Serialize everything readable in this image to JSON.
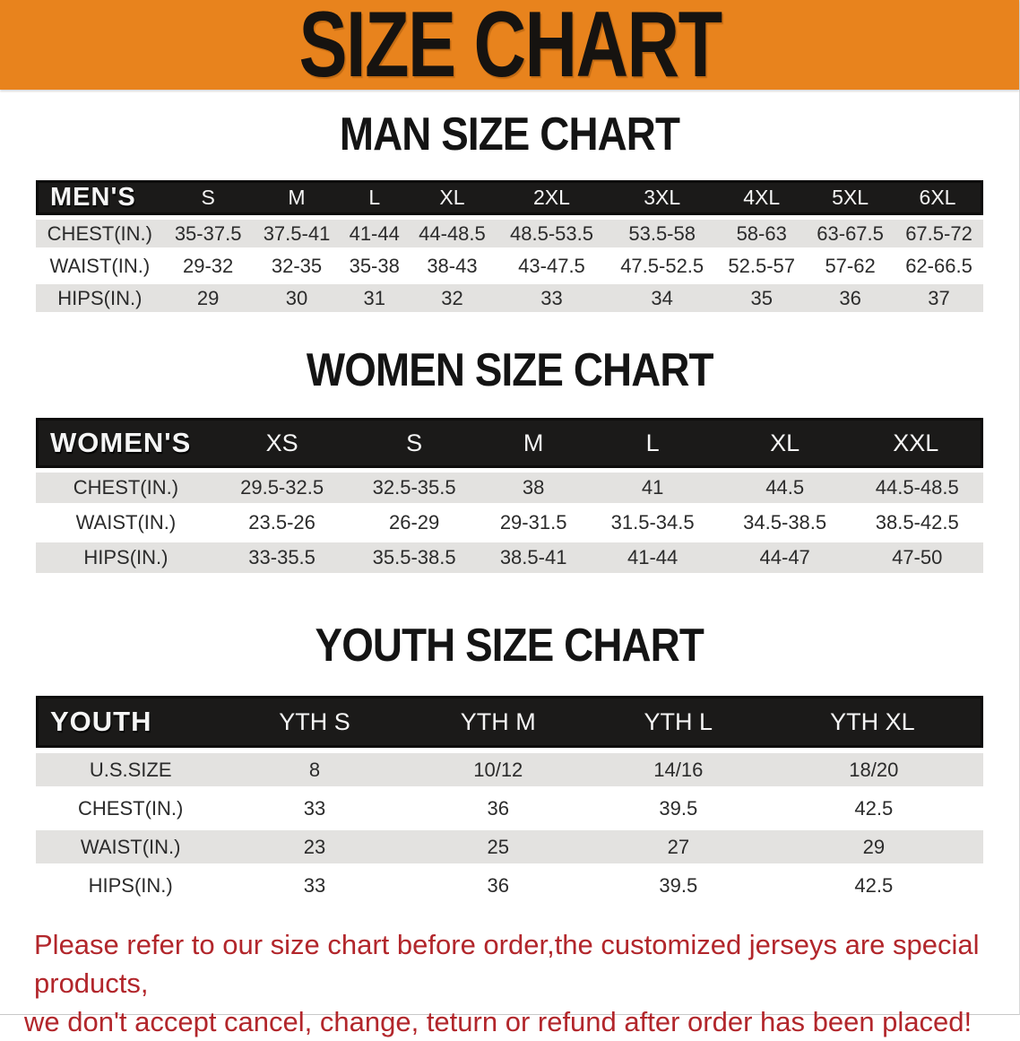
{
  "theme": {
    "banner_bg": "#E8831D",
    "header_bar_bg": "#1B1A19",
    "row_stripe_bg": "#E3E2E0",
    "disclaimer_color": "#B2262B",
    "text_color": "#2B2B2B"
  },
  "banner": {
    "title": "SIZE CHART"
  },
  "sections": [
    {
      "heading": "MAN SIZE CHART",
      "table": {
        "header_label": "MEN'S",
        "columns": [
          "S",
          "M",
          "L",
          "XL",
          "2XL",
          "3XL",
          "4XL",
          "5XL",
          "6XL"
        ],
        "rows": [
          {
            "label": "CHEST(IN.)",
            "values": [
              "35-37.5",
              "37.5-41",
              "41-44",
              "44-48.5",
              "48.5-53.5",
              "53.5-58",
              "58-63",
              "63-67.5",
              "67.5-72"
            ]
          },
          {
            "label": "WAIST(IN.)",
            "values": [
              "29-32",
              "32-35",
              "35-38",
              "38-43",
              "43-47.5",
              "47.5-52.5",
              "52.5-57",
              "57-62",
              "62-66.5"
            ]
          },
          {
            "label": "HIPS(IN.)",
            "values": [
              "29",
              "30",
              "31",
              "32",
              "33",
              "34",
              "35",
              "36",
              "37"
            ]
          }
        ]
      }
    },
    {
      "heading": "WOMEN SIZE CHART",
      "table": {
        "header_label": "WOMEN'S",
        "columns": [
          "XS",
          "S",
          "M",
          "L",
          "XL",
          "XXL"
        ],
        "rows": [
          {
            "label": "CHEST(IN.)",
            "values": [
              "29.5-32.5",
              "32.5-35.5",
              "38",
              "41",
              "44.5",
              "44.5-48.5"
            ]
          },
          {
            "label": "WAIST(IN.)",
            "values": [
              "23.5-26",
              "26-29",
              "29-31.5",
              "31.5-34.5",
              "34.5-38.5",
              "38.5-42.5"
            ]
          },
          {
            "label": "HIPS(IN.)",
            "values": [
              "33-35.5",
              "35.5-38.5",
              "38.5-41",
              "41-44",
              "44-47",
              "47-50"
            ]
          }
        ]
      }
    },
    {
      "heading": "YOUTH SIZE CHART",
      "table": {
        "header_label": "YOUTH",
        "columns": [
          "YTH S",
          "YTH M",
          "YTH L",
          "YTH XL"
        ],
        "rows": [
          {
            "label": "U.S.SIZE",
            "values": [
              "8",
              "10/12",
              "14/16",
              "18/20"
            ]
          },
          {
            "label": "CHEST(IN.)",
            "values": [
              "33",
              "36",
              "39.5",
              "42.5"
            ]
          },
          {
            "label": "WAIST(IN.)",
            "values": [
              "23",
              "25",
              "27",
              "29"
            ]
          },
          {
            "label": "HIPS(IN.)",
            "values": [
              "33",
              "36",
              "39.5",
              "42.5"
            ]
          }
        ]
      }
    }
  ],
  "disclaimer": {
    "line1": "Please refer to our size chart before order,the customized jerseys are special products,",
    "line2": "we don't accept cancel, change, teturn or refund after order has been placed!"
  }
}
